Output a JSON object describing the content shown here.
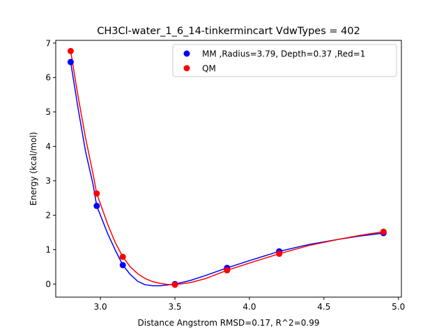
{
  "chart_data": {
    "type": "line",
    "title": "CH3Cl-water_1_6_14-tinkermincart VdwTypes = 402",
    "xlabel": "Distance Angstrom RMSD=0.17, R^2=0.99",
    "ylabel": "Energy (kcal/mol)",
    "xlim": [
      2.7,
      5.02
    ],
    "ylim": [
      -0.38,
      7.08
    ],
    "xticks": [
      "3.0",
      "3.5",
      "4.0",
      "4.5",
      "5.0"
    ],
    "xtick_values": [
      3.0,
      3.5,
      4.0,
      4.5,
      5.0
    ],
    "yticks": [
      "0",
      "1",
      "2",
      "3",
      "4",
      "5",
      "6",
      "7"
    ],
    "ytick_values": [
      0,
      1,
      2,
      3,
      4,
      5,
      6,
      7
    ],
    "grid": false,
    "legend_position": "top-right",
    "series": [
      {
        "name": "MM ,Radius=3.79, Depth=0.37 ,Red=1",
        "color": "#0000ff",
        "x": [
          2.8,
          2.975,
          3.15,
          3.5,
          3.85,
          4.2,
          4.9
        ],
        "y": [
          6.45,
          2.27,
          0.55,
          0.0,
          0.47,
          0.95,
          1.48
        ],
        "curve": [
          [
            2.8,
            6.45
          ],
          [
            2.85,
            5.1
          ],
          [
            2.9,
            3.85
          ],
          [
            2.95,
            2.9
          ],
          [
            2.975,
            2.27
          ],
          [
            3.05,
            1.45
          ],
          [
            3.1,
            0.98
          ],
          [
            3.15,
            0.55
          ],
          [
            3.2,
            0.28
          ],
          [
            3.25,
            0.08
          ],
          [
            3.3,
            -0.02
          ],
          [
            3.35,
            -0.05
          ],
          [
            3.4,
            -0.05
          ],
          [
            3.45,
            -0.03
          ],
          [
            3.5,
            0.0
          ],
          [
            3.6,
            0.1
          ],
          [
            3.7,
            0.24
          ],
          [
            3.85,
            0.47
          ],
          [
            4.0,
            0.68
          ],
          [
            4.2,
            0.95
          ],
          [
            4.4,
            1.15
          ],
          [
            4.6,
            1.3
          ],
          [
            4.75,
            1.4
          ],
          [
            4.9,
            1.48
          ]
        ]
      },
      {
        "name": "QM",
        "color": "#ff0000",
        "x": [
          2.8,
          2.975,
          3.15,
          3.5,
          3.85,
          4.2,
          4.9
        ],
        "y": [
          6.77,
          2.63,
          0.79,
          -0.02,
          0.4,
          0.88,
          1.52
        ],
        "curve": [
          [
            2.8,
            6.77
          ],
          [
            2.85,
            5.45
          ],
          [
            2.9,
            4.25
          ],
          [
            2.95,
            3.2
          ],
          [
            2.975,
            2.63
          ],
          [
            3.05,
            1.72
          ],
          [
            3.1,
            1.2
          ],
          [
            3.15,
            0.79
          ],
          [
            3.2,
            0.5
          ],
          [
            3.25,
            0.3
          ],
          [
            3.3,
            0.16
          ],
          [
            3.35,
            0.07
          ],
          [
            3.4,
            0.02
          ],
          [
            3.45,
            -0.01
          ],
          [
            3.5,
            -0.02
          ],
          [
            3.6,
            0.04
          ],
          [
            3.7,
            0.15
          ],
          [
            3.85,
            0.4
          ],
          [
            4.0,
            0.61
          ],
          [
            4.2,
            0.88
          ],
          [
            4.4,
            1.12
          ],
          [
            4.6,
            1.3
          ],
          [
            4.75,
            1.42
          ],
          [
            4.9,
            1.52
          ]
        ]
      }
    ]
  }
}
